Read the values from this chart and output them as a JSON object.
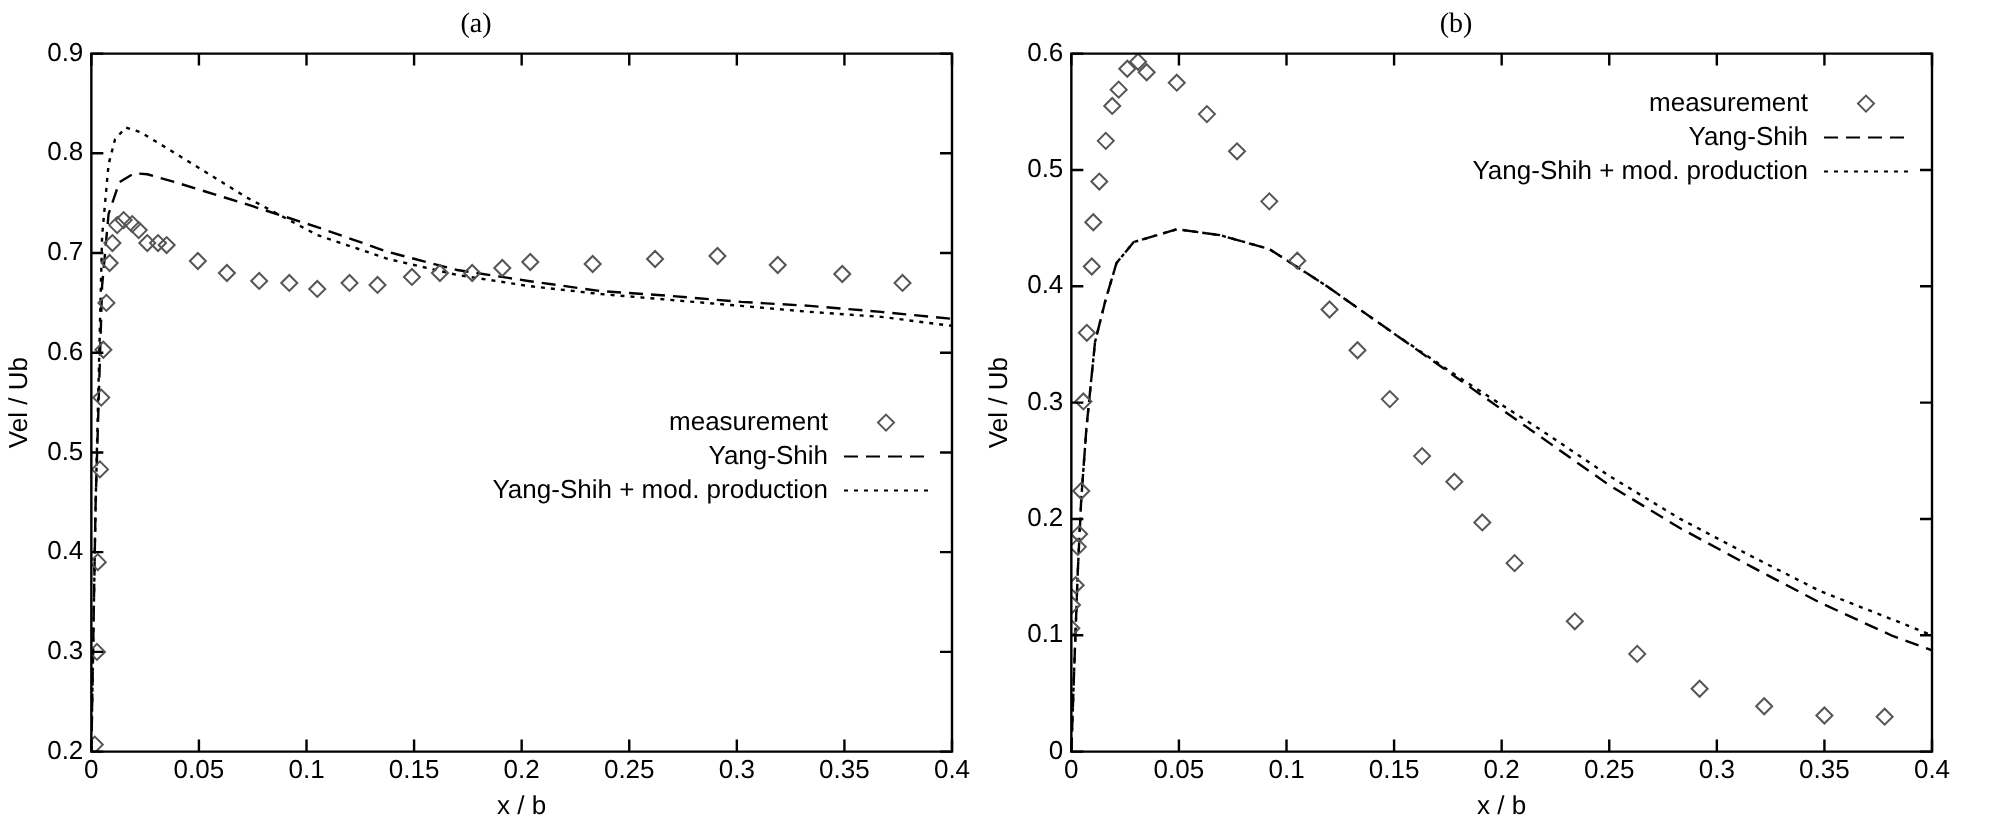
{
  "chart_data": [
    {
      "type": "scatter",
      "title": "(a)",
      "xlabel": "x / b",
      "ylabel": "Vel / Ub",
      "xlim": [
        0,
        0.4
      ],
      "xticks": [
        0,
        0.05,
        0.1,
        0.15,
        0.2,
        0.25,
        0.3,
        0.35,
        0.4
      ],
      "ylim": [
        0.2,
        0.9
      ],
      "yticks": [
        0.2,
        0.3,
        0.4,
        0.5,
        0.6,
        0.7,
        0.8,
        0.9
      ],
      "grid": false,
      "legend": "right",
      "series": [
        {
          "name": "measurement",
          "type": "scatter",
          "marker": "diamond",
          "color": "#555555",
          "x": [
            0.0016,
            0.0026,
            0.003,
            0.004,
            0.0046,
            0.0056,
            0.007,
            0.0085,
            0.0098,
            0.012,
            0.015,
            0.019,
            0.022,
            0.026,
            0.031,
            0.035,
            0.0495,
            0.063,
            0.078,
            0.092,
            0.105,
            0.12,
            0.133,
            0.149,
            0.162,
            0.177,
            0.191,
            0.204,
            0.233,
            0.262,
            0.291,
            0.319,
            0.349,
            0.377
          ],
          "values": [
            0.207,
            0.3,
            0.39,
            0.483,
            0.555,
            0.603,
            0.65,
            0.69,
            0.71,
            0.728,
            0.733,
            0.729,
            0.723,
            0.71,
            0.71,
            0.708,
            0.692,
            0.68,
            0.672,
            0.67,
            0.664,
            0.67,
            0.668,
            0.676,
            0.68,
            0.68,
            0.685,
            0.691,
            0.689,
            0.694,
            0.697,
            0.688,
            0.679,
            0.67
          ]
        },
        {
          "name": "Yang-Shih",
          "type": "line",
          "marker": "none",
          "line_style": "dashed",
          "color": "#000000",
          "x": [
            0,
            0.002,
            0.005,
            0.008,
            0.013,
            0.02,
            0.026,
            0.039,
            0.072,
            0.105,
            0.138,
            0.17,
            0.203,
            0.236,
            0.269,
            0.302,
            0.334,
            0.367,
            0.4
          ],
          "values": [
            0.2,
            0.45,
            0.667,
            0.739,
            0.771,
            0.78,
            0.779,
            0.771,
            0.749,
            0.726,
            0.701,
            0.683,
            0.672,
            0.662,
            0.657,
            0.651,
            0.647,
            0.641,
            0.634
          ]
        },
        {
          "name": "Yang-Shih + mod. production",
          "type": "line",
          "marker": "none",
          "line_style": "dotted",
          "color": "#000000",
          "x": [
            0,
            0.002,
            0.005,
            0.008,
            0.011,
            0.016,
            0.023,
            0.039,
            0.072,
            0.105,
            0.138,
            0.17,
            0.203,
            0.236,
            0.269,
            0.302,
            0.334,
            0.367,
            0.4
          ],
          "values": [
            0.2,
            0.45,
            0.717,
            0.789,
            0.814,
            0.826,
            0.821,
            0.8,
            0.756,
            0.718,
            0.694,
            0.678,
            0.667,
            0.659,
            0.653,
            0.647,
            0.641,
            0.636,
            0.627
          ]
        }
      ]
    },
    {
      "type": "scatter",
      "title": "(b)",
      "xlabel": "x / b",
      "ylabel": "Vel / Ub",
      "xlim": [
        0,
        0.4
      ],
      "xticks": [
        0,
        0.05,
        0.1,
        0.15,
        0.2,
        0.25,
        0.3,
        0.35,
        0.4
      ],
      "ylim": [
        0,
        0.6
      ],
      "yticks": [
        0,
        0.1,
        0.2,
        0.3,
        0.4,
        0.5,
        0.6
      ],
      "grid": false,
      "legend": "top right",
      "series": [
        {
          "name": "measurement",
          "type": "scatter",
          "marker": "diamond",
          "color": "#555555",
          "x": [
            0,
            0.0003,
            0.002,
            0.003,
            0.0036,
            0.0046,
            0.0056,
            0.0072,
            0.0095,
            0.0102,
            0.013,
            0.016,
            0.019,
            0.022,
            0.026,
            0.031,
            0.035,
            0.049,
            0.063,
            0.077,
            0.092,
            0.105,
            0.12,
            0.133,
            0.148,
            0.163,
            0.178,
            0.191,
            0.206,
            0.234,
            0.263,
            0.292,
            0.322,
            0.35,
            0.378
          ],
          "values": [
            0.106,
            0.126,
            0.143,
            0.176,
            0.187,
            0.224,
            0.301,
            0.36,
            0.417,
            0.455,
            0.49,
            0.525,
            0.555,
            0.569,
            0.587,
            0.593,
            0.584,
            0.575,
            0.548,
            0.516,
            0.473,
            0.422,
            0.38,
            0.345,
            0.303,
            0.254,
            0.232,
            0.197,
            0.162,
            0.112,
            0.084,
            0.054,
            0.039,
            0.031,
            0.03
          ]
        },
        {
          "name": "Yang-Shih",
          "type": "line",
          "marker": "none",
          "line_style": "dashed",
          "color": "#000000",
          "x": [
            0,
            0.0013,
            0.003,
            0.0046,
            0.007,
            0.011,
            0.016,
            0.021,
            0.029,
            0.049,
            0.069,
            0.092,
            0.118,
            0.151,
            0.184,
            0.217,
            0.25,
            0.283,
            0.316,
            0.348,
            0.381,
            0.4
          ],
          "values": [
            0,
            0.07,
            0.155,
            0.217,
            0.278,
            0.352,
            0.389,
            0.42,
            0.438,
            0.449,
            0.444,
            0.432,
            0.401,
            0.358,
            0.315,
            0.272,
            0.229,
            0.192,
            0.159,
            0.128,
            0.1,
            0.087
          ]
        },
        {
          "name": "Yang-Shih + mod. production",
          "type": "line",
          "marker": "none",
          "line_style": "dotted",
          "color": "#000000",
          "x": [
            0,
            0.0013,
            0.003,
            0.0046,
            0.007,
            0.011,
            0.016,
            0.021,
            0.029,
            0.049,
            0.069,
            0.092,
            0.118,
            0.151,
            0.184,
            0.217,
            0.25,
            0.283,
            0.316,
            0.348,
            0.381,
            0.4
          ],
          "values": [
            0,
            0.07,
            0.155,
            0.217,
            0.278,
            0.352,
            0.389,
            0.42,
            0.438,
            0.449,
            0.444,
            0.432,
            0.401,
            0.358,
            0.317,
            0.278,
            0.237,
            0.2,
            0.168,
            0.138,
            0.114,
            0.1
          ]
        }
      ]
    }
  ]
}
